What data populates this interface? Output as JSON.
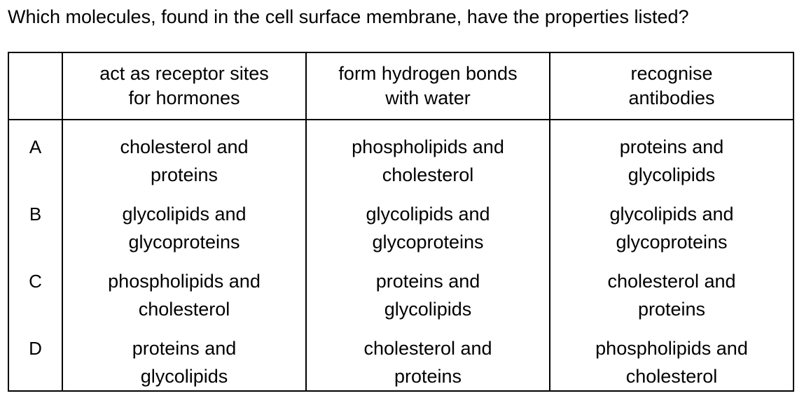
{
  "question": "Which molecules, found in the cell surface membrane, have the properties listed?",
  "headers": [
    "",
    "act as receptor sites for hormones",
    "form hydrogen bonds with water",
    "recognise antibodies"
  ],
  "header_lines": [
    [
      "",
      ""
    ],
    [
      "act as receptor sites",
      "for hormones"
    ],
    [
      "form hydrogen bonds",
      "with water"
    ],
    [
      "recognise",
      "antibodies"
    ]
  ],
  "rows": [
    {
      "key": "A",
      "cells": [
        [
          "cholesterol and",
          "proteins"
        ],
        [
          "phospholipids and",
          "cholesterol"
        ],
        [
          "proteins and",
          "glycolipids"
        ]
      ]
    },
    {
      "key": "B",
      "cells": [
        [
          "glycolipids and",
          "glycoproteins"
        ],
        [
          "glycolipids and",
          "glycoproteins"
        ],
        [
          "glycolipids and",
          "glycoproteins"
        ]
      ]
    },
    {
      "key": "C",
      "cells": [
        [
          "phospholipids and",
          "cholesterol"
        ],
        [
          "proteins and",
          "glycolipids"
        ],
        [
          "cholesterol and",
          "proteins"
        ]
      ]
    },
    {
      "key": "D",
      "cells": [
        [
          "proteins and",
          "glycolipids"
        ],
        [
          "cholesterol and",
          "proteins"
        ],
        [
          "phospholipids and",
          "cholesterol"
        ]
      ]
    }
  ]
}
